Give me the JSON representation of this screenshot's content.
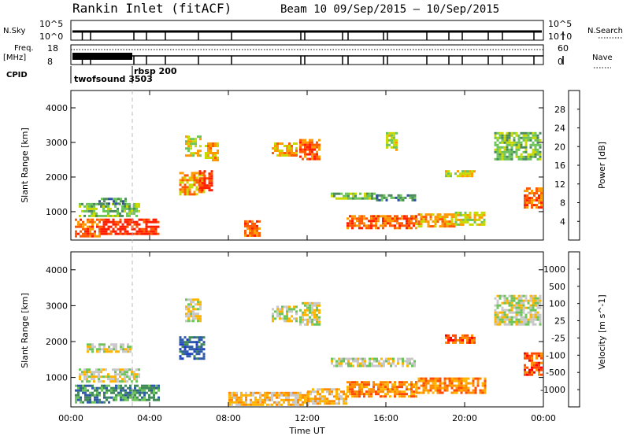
{
  "header": {
    "title": "Rankin Inlet (fitACF)",
    "beam_info": "Beam 10  09/Sep/2015 – 10/Sep/2015"
  },
  "top_panels": {
    "nsky_label": "N.Sky",
    "nsky_ticks": [
      "10^5",
      "10^0"
    ],
    "nsearch_label": "N.Search",
    "nsearch_ticks": [
      "10^5",
      "10^0"
    ],
    "freq_label_1": "Freq.",
    "freq_label_2": "[MHz]",
    "freq_ticks": [
      "18",
      "8"
    ],
    "nave_label": "Nave",
    "nave_ticks": [
      "60",
      "0"
    ],
    "cpid_label": "CPID",
    "cpid_names": [
      "twofsound 3503",
      "rbsp 200"
    ]
  },
  "chart_data": [
    {
      "type": "heatmap",
      "title": "",
      "ylabel": "Slant Range [km]",
      "xlabel": "",
      "x_ticks": [
        "00:00",
        "04:00",
        "08:00",
        "12:00",
        "16:00",
        "20:00",
        "00:00"
      ],
      "xlim_hours": [
        0,
        24
      ],
      "ylim_km": [
        180,
        4500
      ],
      "y_ticks": [
        1000,
        2000,
        3000,
        4000
      ],
      "colorbar": {
        "label": "Power [dB]",
        "ticks": [
          "28",
          "24",
          "20",
          "16",
          "12",
          "8",
          "4"
        ],
        "colors": [
          "#0000ff",
          "#2e4ea8",
          "#4d8a5e",
          "#6cc45a",
          "#c8d900",
          "#ff9a00",
          "#ff5a00",
          "#ff1e00"
        ]
      },
      "regions": [
        {
          "t0": 0.2,
          "t1": 1.5,
          "r0": 300,
          "r1": 800,
          "level": 6
        },
        {
          "t0": 1.5,
          "t1": 4.5,
          "r0": 350,
          "r1": 800,
          "level": 7
        },
        {
          "t0": 0.4,
          "t1": 3.5,
          "r0": 900,
          "r1": 1250,
          "level": 3
        },
        {
          "t0": 1.4,
          "t1": 2.8,
          "r0": 1250,
          "r1": 1400,
          "level": 2
        },
        {
          "t0": 5.5,
          "t1": 6.8,
          "r0": 1500,
          "r1": 2150,
          "level": 5
        },
        {
          "t0": 6.5,
          "t1": 7.2,
          "r0": 1600,
          "r1": 2200,
          "level": 7
        },
        {
          "t0": 5.8,
          "t1": 6.6,
          "r0": 2600,
          "r1": 3200,
          "level": 4
        },
        {
          "t0": 6.8,
          "t1": 7.5,
          "r0": 2500,
          "r1": 3000,
          "level": 5
        },
        {
          "t0": 8.8,
          "t1": 9.6,
          "r0": 300,
          "r1": 750,
          "level": 6
        },
        {
          "t0": 10.2,
          "t1": 11.5,
          "r0": 2600,
          "r1": 3000,
          "level": 5
        },
        {
          "t0": 11.6,
          "t1": 12.6,
          "r0": 2500,
          "r1": 3100,
          "level": 6
        },
        {
          "t0": 14.0,
          "t1": 17.5,
          "r0": 500,
          "r1": 900,
          "level": 6
        },
        {
          "t0": 17.5,
          "t1": 19.5,
          "r0": 550,
          "r1": 950,
          "level": 5
        },
        {
          "t0": 19.5,
          "t1": 21.0,
          "r0": 650,
          "r1": 1000,
          "level": 4
        },
        {
          "t0": 13.2,
          "t1": 15.5,
          "r0": 1350,
          "r1": 1550,
          "level": 3
        },
        {
          "t0": 15.5,
          "t1": 17.5,
          "r0": 1300,
          "r1": 1500,
          "level": 2
        },
        {
          "t0": 19.0,
          "t1": 20.5,
          "r0": 2000,
          "r1": 2200,
          "level": 4
        },
        {
          "t0": 16.0,
          "t1": 16.5,
          "r0": 2800,
          "r1": 3300,
          "level": 4
        },
        {
          "t0": 21.5,
          "t1": 23.8,
          "r0": 2500,
          "r1": 3300,
          "level": 3
        },
        {
          "t0": 23.0,
          "t1": 23.9,
          "r0": 1100,
          "r1": 1700,
          "level": 6
        }
      ]
    },
    {
      "type": "heatmap",
      "title": "",
      "ylabel": "Slant Range [km]",
      "xlabel": "Time UT",
      "x_ticks": [
        "00:00",
        "04:00",
        "08:00",
        "12:00",
        "16:00",
        "20:00",
        "00:00"
      ],
      "xlim_hours": [
        0,
        24
      ],
      "ylim_km": [
        180,
        4500
      ],
      "y_ticks": [
        1000,
        2000,
        3000,
        4000
      ],
      "colorbar": {
        "label": "Velocity [m s^-1]",
        "ticks": [
          "1000",
          "500",
          "100",
          "25",
          "-25",
          "-100",
          "-500",
          "-1000"
        ],
        "colors": [
          "#ff0000",
          "#ff4a00",
          "#ff8c00",
          "#ffb400",
          "#c8c8c8",
          "#6cc45a",
          "#3f8a56",
          "#2e5aa8",
          "#1e3cc8"
        ]
      },
      "regions": [
        {
          "t0": 0.2,
          "t1": 2.0,
          "r0": 300,
          "r1": 800,
          "level": 6
        },
        {
          "t0": 2.0,
          "t1": 4.5,
          "r0": 350,
          "r1": 800,
          "level": 6
        },
        {
          "t0": 0.4,
          "t1": 3.5,
          "r0": 900,
          "r1": 1250,
          "level": 4
        },
        {
          "t0": 0.8,
          "t1": 3.0,
          "r0": 1700,
          "r1": 1950,
          "level": 4
        },
        {
          "t0": 5.5,
          "t1": 6.8,
          "r0": 1500,
          "r1": 2150,
          "level": 7
        },
        {
          "t0": 5.8,
          "t1": 6.6,
          "r0": 2600,
          "r1": 3200,
          "level": 4
        },
        {
          "t0": 8.0,
          "t1": 12.0,
          "r0": 250,
          "r1": 600,
          "level": 3
        },
        {
          "t0": 10.2,
          "t1": 11.5,
          "r0": 2600,
          "r1": 3000,
          "level": 4
        },
        {
          "t0": 11.6,
          "t1": 12.6,
          "r0": 2500,
          "r1": 3100,
          "level": 4
        },
        {
          "t0": 12.0,
          "t1": 14.0,
          "r0": 300,
          "r1": 700,
          "level": 3
        },
        {
          "t0": 14.0,
          "t1": 17.5,
          "r0": 500,
          "r1": 900,
          "level": 2
        },
        {
          "t0": 17.5,
          "t1": 21.0,
          "r0": 550,
          "r1": 1000,
          "level": 2
        },
        {
          "t0": 13.2,
          "t1": 17.5,
          "r0": 1300,
          "r1": 1550,
          "level": 4
        },
        {
          "t0": 19.0,
          "t1": 20.5,
          "r0": 2000,
          "r1": 2200,
          "level": 1
        },
        {
          "t0": 21.5,
          "t1": 23.8,
          "r0": 2500,
          "r1": 3300,
          "level": 4
        },
        {
          "t0": 23.0,
          "t1": 23.9,
          "r0": 1100,
          "r1": 1700,
          "level": 1
        }
      ]
    }
  ]
}
